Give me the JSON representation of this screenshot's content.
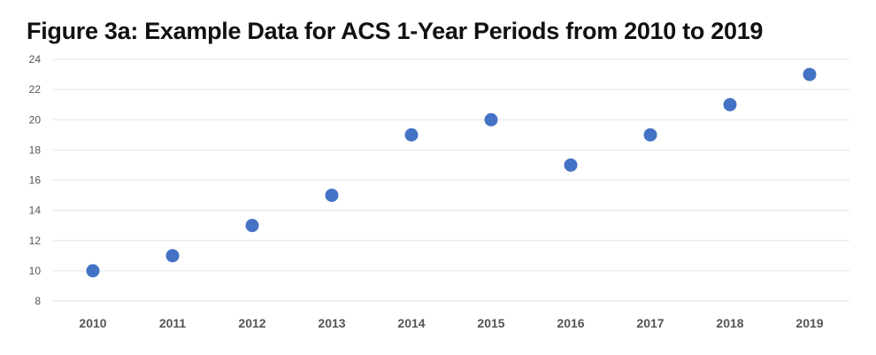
{
  "chart_data": {
    "type": "scatter",
    "title": "Figure 3a: Example Data for ACS 1-Year Periods from 2010 to 2019",
    "xlabel": "",
    "ylabel": "",
    "categories": [
      "2010",
      "2011",
      "2012",
      "2013",
      "2014",
      "2015",
      "2016",
      "2017",
      "2018",
      "2019"
    ],
    "series": [
      {
        "values": [
          10,
          11,
          13,
          15,
          19,
          20,
          17,
          19,
          21,
          23
        ],
        "color": "#4472C4"
      }
    ],
    "ylim": [
      8,
      24
    ],
    "yticks": [
      8,
      10,
      12,
      14,
      16,
      18,
      20,
      22,
      24
    ],
    "grid": true,
    "legend": "none"
  }
}
